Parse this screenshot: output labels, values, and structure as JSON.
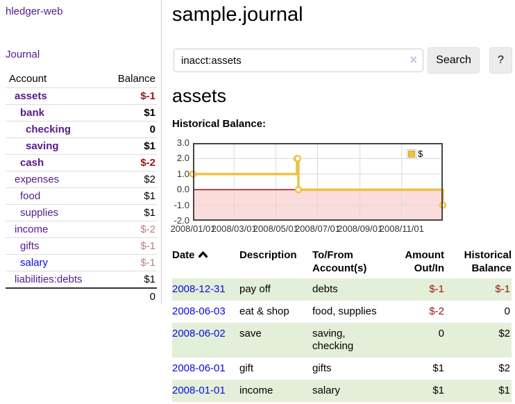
{
  "colors": {
    "link_purple": "#551a8b",
    "link_blue": "#0a0ae0",
    "negative_strong": "#9d1414",
    "negative_muted": "#bd7b7b",
    "row_stripe_green": "#e3efd8",
    "chart_line_gold": "#edc240",
    "chart_negative_pink": "#fbdcdc",
    "chart_zero_line": "#991111"
  },
  "app": {
    "title": "hledger-web"
  },
  "sidebar": {
    "journal_link": "Journal",
    "table": {
      "account_header": "Account",
      "balance_header": "Balance",
      "rows": [
        {
          "account": "assets",
          "balance": "$-1",
          "indent": 0,
          "bold": true
        },
        {
          "account": "bank",
          "balance": "$1",
          "indent": 1,
          "bold": true
        },
        {
          "account": "checking",
          "balance": "0",
          "indent": 2,
          "bold": true
        },
        {
          "account": "saving",
          "balance": "$1",
          "indent": 2,
          "bold": true
        },
        {
          "account": "cash",
          "balance": "$-2",
          "indent": 1,
          "bold": true
        },
        {
          "account": "expenses",
          "balance": "$2",
          "indent": 0,
          "bold": false
        },
        {
          "account": "food",
          "balance": "$1",
          "indent": 1,
          "bold": false
        },
        {
          "account": "supplies",
          "balance": "$1",
          "indent": 1,
          "bold": false
        },
        {
          "account": "income",
          "balance": "$-2",
          "indent": 0,
          "bold": false
        },
        {
          "account": "gifts",
          "balance": "$-1",
          "indent": 1,
          "bold": false
        },
        {
          "account": "salary",
          "balance": "$-1",
          "indent": 1,
          "bold": false,
          "unvisited": true
        },
        {
          "account": "liabilities:debts",
          "balance": "$1",
          "indent": 0,
          "bold": false
        }
      ],
      "total": "0"
    }
  },
  "main": {
    "title": "sample.journal",
    "search": {
      "value": "inacct:assets",
      "clear_icon": "×",
      "button_label": "Search",
      "help_label": "?"
    },
    "account_heading": "assets",
    "chart_label": "Historical Balance:"
  },
  "chart_data": {
    "type": "line",
    "title": "Historical Balance",
    "steps": true,
    "xlim": [
      "2008-01-01",
      "2008-12-31"
    ],
    "ylim": [
      -2,
      3
    ],
    "x_ticks": [
      "2008/01/01",
      "2008/03/01",
      "2008/05/01",
      "2008/07/01",
      "2008/09/01",
      "2008/11/01"
    ],
    "y_ticks": [
      3,
      2,
      1,
      0,
      -1,
      -2
    ],
    "legend": {
      "label": "$",
      "position": "top-right"
    },
    "series": [
      {
        "name": "$",
        "color": "#edc240",
        "points": [
          {
            "date": "2008-01-01",
            "value": 1
          },
          {
            "date": "2008-06-01",
            "value": 2
          },
          {
            "date": "2008-06-02",
            "value": 2
          },
          {
            "date": "2008-06-03",
            "value": 0
          },
          {
            "date": "2008-12-31",
            "value": -1
          }
        ]
      }
    ],
    "negative_region_color": "#fbdcdc",
    "zero_line_color": "#991111",
    "grid_color": "#d9d9d9",
    "border_color": "#454545"
  },
  "register": {
    "headers": [
      {
        "lines": [
          "Date"
        ],
        "align": "left",
        "sortable": true,
        "sort": "asc"
      },
      {
        "lines": [
          "Description"
        ],
        "align": "left"
      },
      {
        "lines": [
          "To/From",
          "Account(s)"
        ],
        "align": "left"
      },
      {
        "lines": [
          "Amount",
          "Out/In"
        ],
        "align": "right"
      },
      {
        "lines": [
          "Historical",
          "Balance"
        ],
        "align": "right"
      }
    ],
    "rows": [
      {
        "date": "2008-12-31",
        "description": "pay off",
        "accounts": "debts",
        "amount": "$-1",
        "balance": "$-1"
      },
      {
        "date": "2008-06-03",
        "description": "eat & shop",
        "accounts": "food, supplies",
        "amount": "$-2",
        "balance": "0"
      },
      {
        "date": "2008-06-02",
        "description": "save",
        "accounts": "saving,\nchecking",
        "amount": "0",
        "balance": "$2"
      },
      {
        "date": "2008-06-01",
        "description": "gift",
        "accounts": "gifts",
        "amount": "$1",
        "balance": "$2"
      },
      {
        "date": "2008-01-01",
        "description": "income",
        "accounts": "salary",
        "amount": "$1",
        "balance": "$1"
      }
    ]
  }
}
